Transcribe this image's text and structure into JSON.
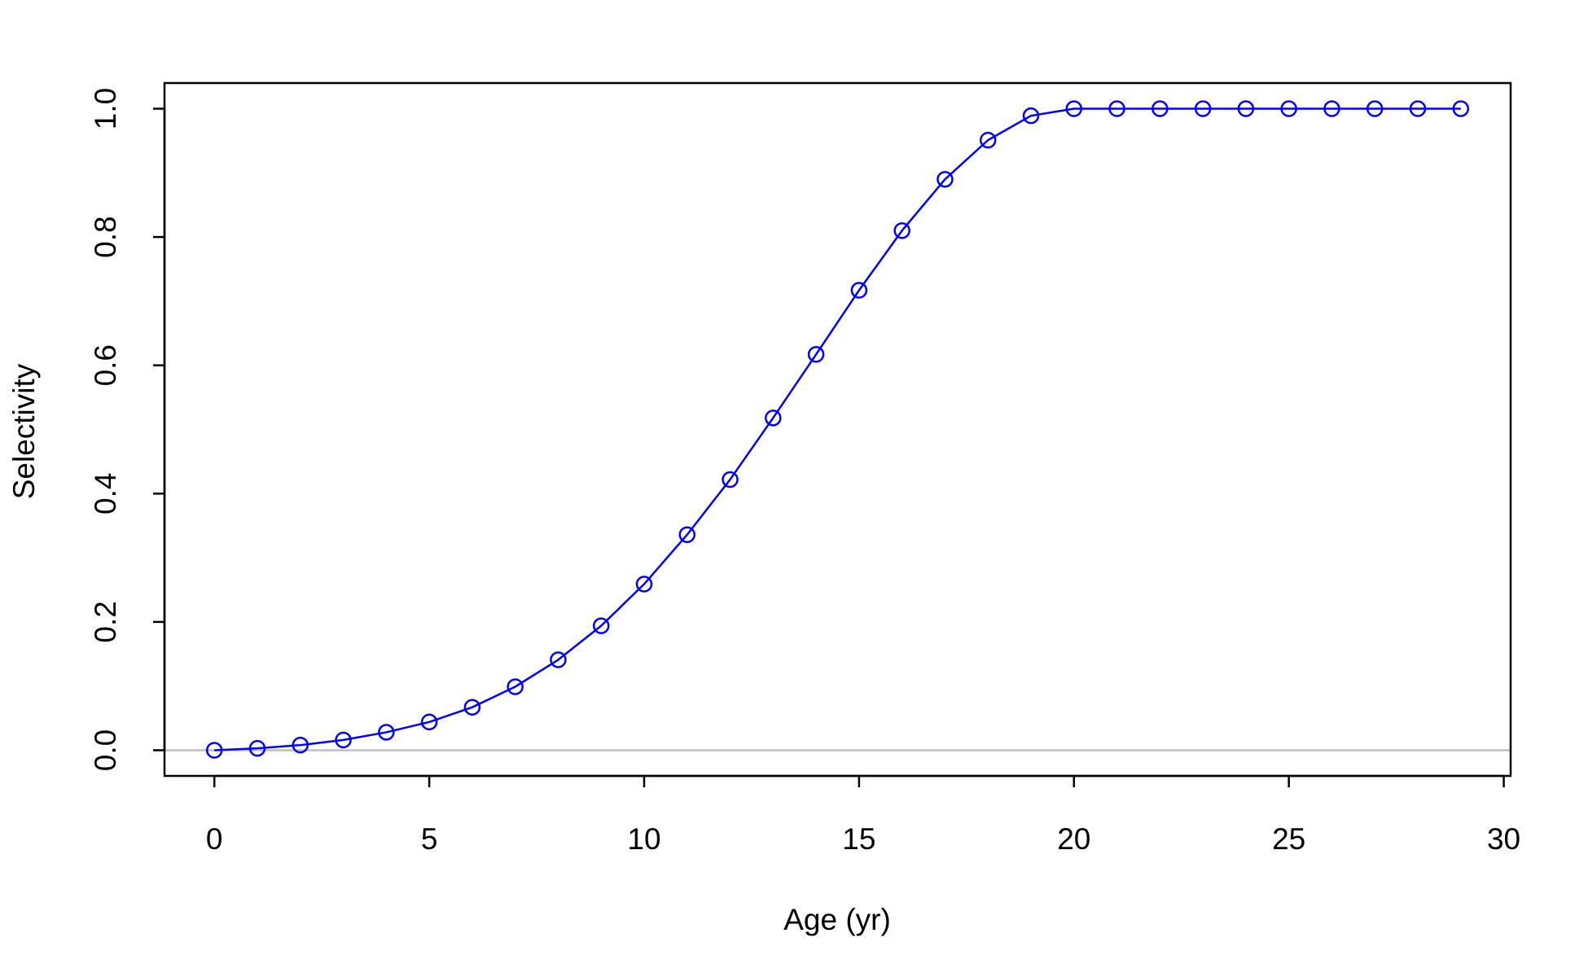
{
  "chart_data": {
    "type": "line",
    "title": "",
    "xlabel": "Age (yr)",
    "ylabel": "Selectivity",
    "xlim": [
      -1.16,
      30.16
    ],
    "ylim": [
      -0.04,
      1.04
    ],
    "x_ticks": [
      0,
      5,
      10,
      15,
      20,
      25,
      30
    ],
    "x_tick_labels": [
      "0",
      "5",
      "10",
      "15",
      "20",
      "25",
      "30"
    ],
    "y_ticks": [
      0.0,
      0.2,
      0.4,
      0.6,
      0.8,
      1.0
    ],
    "y_tick_labels": [
      "0.0",
      "0.2",
      "0.4",
      "0.6",
      "0.8",
      "1.0"
    ],
    "grid": false,
    "reference_line": {
      "y": 0,
      "color": "#bebebe"
    },
    "series": [
      {
        "color": "#0000ff",
        "marker": "open-circle",
        "x": [
          0,
          1,
          2,
          3,
          4,
          5,
          6,
          7,
          8,
          9,
          10,
          11,
          12,
          13,
          14,
          15,
          16,
          17,
          18,
          19,
          20,
          21,
          22,
          23,
          24,
          25,
          26,
          27,
          28,
          29
        ],
        "y": [
          0.0,
          0.003,
          0.008,
          0.016,
          0.028,
          0.044,
          0.067,
          0.099,
          0.141,
          0.194,
          0.259,
          0.336,
          0.422,
          0.518,
          0.617,
          0.717,
          0.81,
          0.89,
          0.951,
          0.989,
          1.0,
          1.0,
          1.0,
          1.0,
          1.0,
          1.0,
          1.0,
          1.0,
          1.0,
          1.0
        ]
      }
    ]
  }
}
